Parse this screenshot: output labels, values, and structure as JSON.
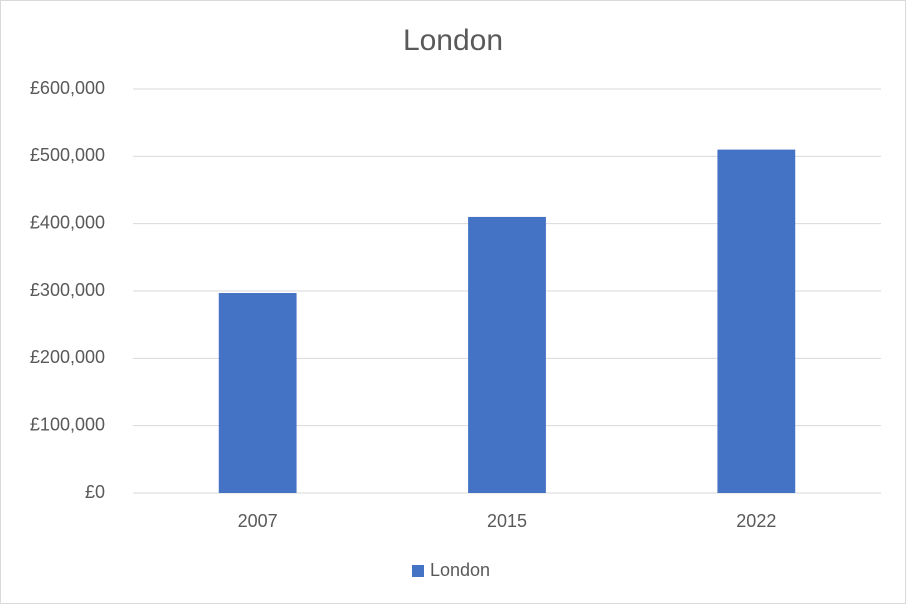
{
  "chart_data": {
    "type": "bar",
    "title": "London",
    "categories": [
      "2007",
      "2015",
      "2022"
    ],
    "series": [
      {
        "name": "London",
        "color": "#4472c4",
        "values": [
          297000,
          410000,
          510000
        ]
      }
    ],
    "ylim": [
      0,
      600000
    ],
    "yticks": [
      {
        "value": 0,
        "label": "£0"
      },
      {
        "value": 100000,
        "label": "£100,000"
      },
      {
        "value": 200000,
        "label": "£200,000"
      },
      {
        "value": 300000,
        "label": "£300,000"
      },
      {
        "value": 400000,
        "label": "£400,000"
      },
      {
        "value": 500000,
        "label": "£500,000"
      },
      {
        "value": 600000,
        "label": "£600,000"
      }
    ],
    "grid": true,
    "legend": "bottom"
  }
}
